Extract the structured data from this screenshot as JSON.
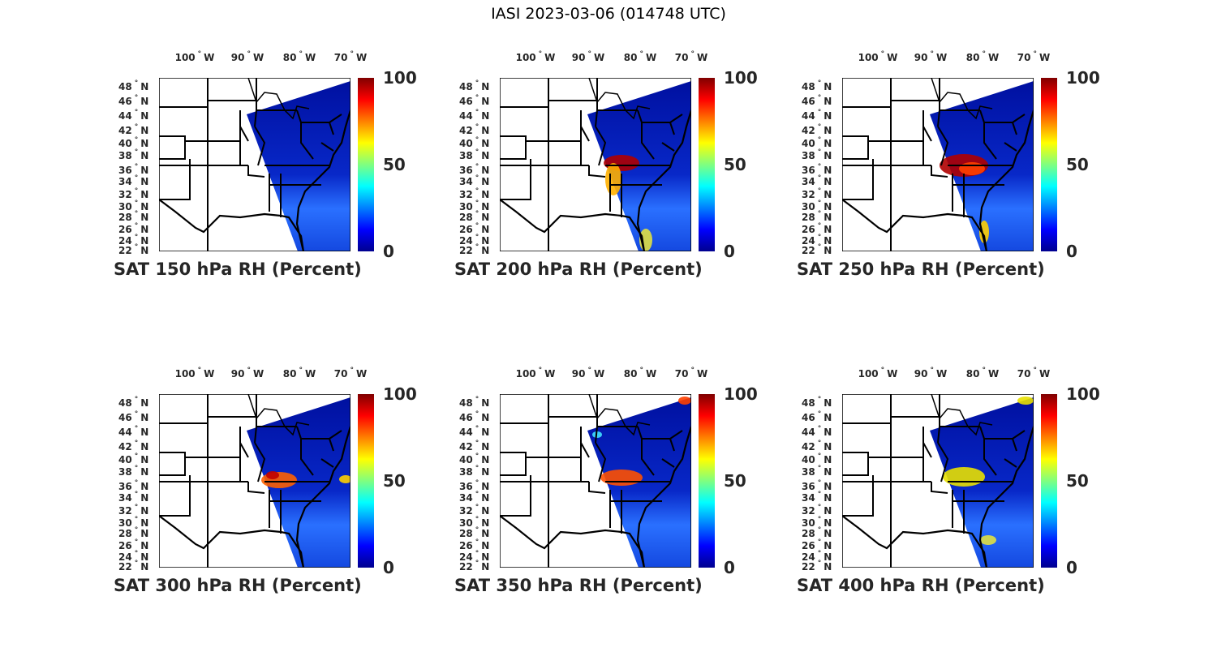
{
  "figure": {
    "title": "IASI 2023-03-06 (014748 UTC)",
    "colormap": "jet",
    "colorbar": {
      "min": 0,
      "max": 100,
      "ticks": [
        "100",
        "50",
        "0"
      ]
    },
    "lon_labels": [
      {
        "deg": "100",
        "hemi": "W"
      },
      {
        "deg": "90",
        "hemi": "W"
      },
      {
        "deg": "80",
        "hemi": "W"
      },
      {
        "deg": "70",
        "hemi": "W"
      }
    ],
    "lat_labels": [
      {
        "deg": "48",
        "hemi": "N"
      },
      {
        "deg": "46",
        "hemi": "N"
      },
      {
        "deg": "44",
        "hemi": "N"
      },
      {
        "deg": "42",
        "hemi": "N"
      },
      {
        "deg": "40",
        "hemi": "N"
      },
      {
        "deg": "38",
        "hemi": "N"
      },
      {
        "deg": "36",
        "hemi": "N"
      },
      {
        "deg": "34",
        "hemi": "N"
      },
      {
        "deg": "32",
        "hemi": "N"
      },
      {
        "deg": "30",
        "hemi": "N"
      },
      {
        "deg": "28",
        "hemi": "N"
      },
      {
        "deg": "26",
        "hemi": "N"
      },
      {
        "deg": "24",
        "hemi": "N"
      },
      {
        "deg": "22",
        "hemi": "N"
      }
    ],
    "degree_symbol": "°",
    "panels": [
      {
        "title": "SAT 150 hPa RH (Percent)",
        "peak_rh": 35
      },
      {
        "title": "SAT 200 hPa RH (Percent)",
        "peak_rh": 95
      },
      {
        "title": "SAT 250 hPa RH (Percent)",
        "peak_rh": 95
      },
      {
        "title": "SAT 300 hPa RH (Percent)",
        "peak_rh": 85
      },
      {
        "title": "SAT 350 hPa RH (Percent)",
        "peak_rh": 80
      },
      {
        "title": "SAT 400 hPa RH (Percent)",
        "peak_rh": 65
      }
    ]
  }
}
